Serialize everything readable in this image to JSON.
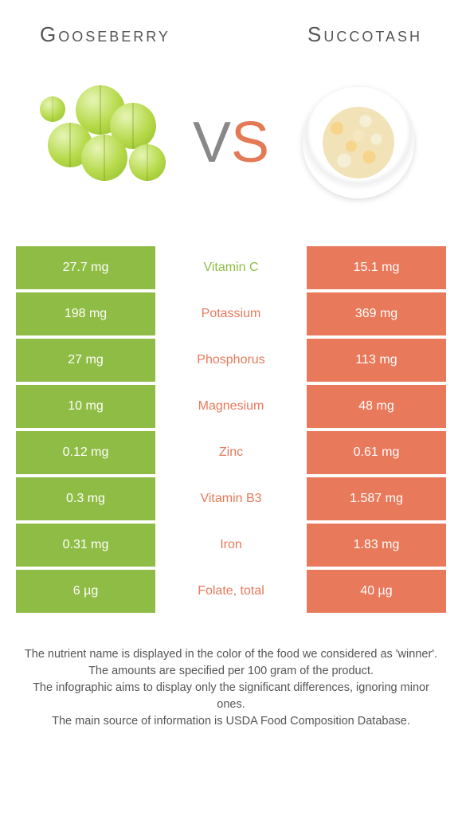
{
  "header": {
    "left": "Gooseberry",
    "right": "Succotash"
  },
  "vs": {
    "v": "V",
    "s": "S"
  },
  "colors": {
    "green": "#8fbc44",
    "orange": "#e9795b",
    "title_text": "#555555"
  },
  "rows": [
    {
      "left": "27.7 mg",
      "label": "Vitamin C",
      "right": "15.1 mg",
      "winner": "green"
    },
    {
      "left": "198 mg",
      "label": "Potassium",
      "right": "369 mg",
      "winner": "orange"
    },
    {
      "left": "27 mg",
      "label": "Phosphorus",
      "right": "113 mg",
      "winner": "orange"
    },
    {
      "left": "10 mg",
      "label": "Magnesium",
      "right": "48 mg",
      "winner": "orange"
    },
    {
      "left": "0.12 mg",
      "label": "Zinc",
      "right": "0.61 mg",
      "winner": "orange"
    },
    {
      "left": "0.3 mg",
      "label": "Vitamin B3",
      "right": "1.587 mg",
      "winner": "orange"
    },
    {
      "left": "0.31 mg",
      "label": "Iron",
      "right": "1.83 mg",
      "winner": "orange"
    },
    {
      "left": "6 µg",
      "label": "Folate, total",
      "right": "40 µg",
      "winner": "orange"
    }
  ],
  "footer": {
    "l1": "The nutrient name is displayed in the color of the food we considered as 'winner'.",
    "l2": "The amounts are specified per 100 gram of the product.",
    "l3": "The infographic aims to display only the significant differences, ignoring minor ones.",
    "l4": "The main source of information is USDA Food Composition Database."
  }
}
